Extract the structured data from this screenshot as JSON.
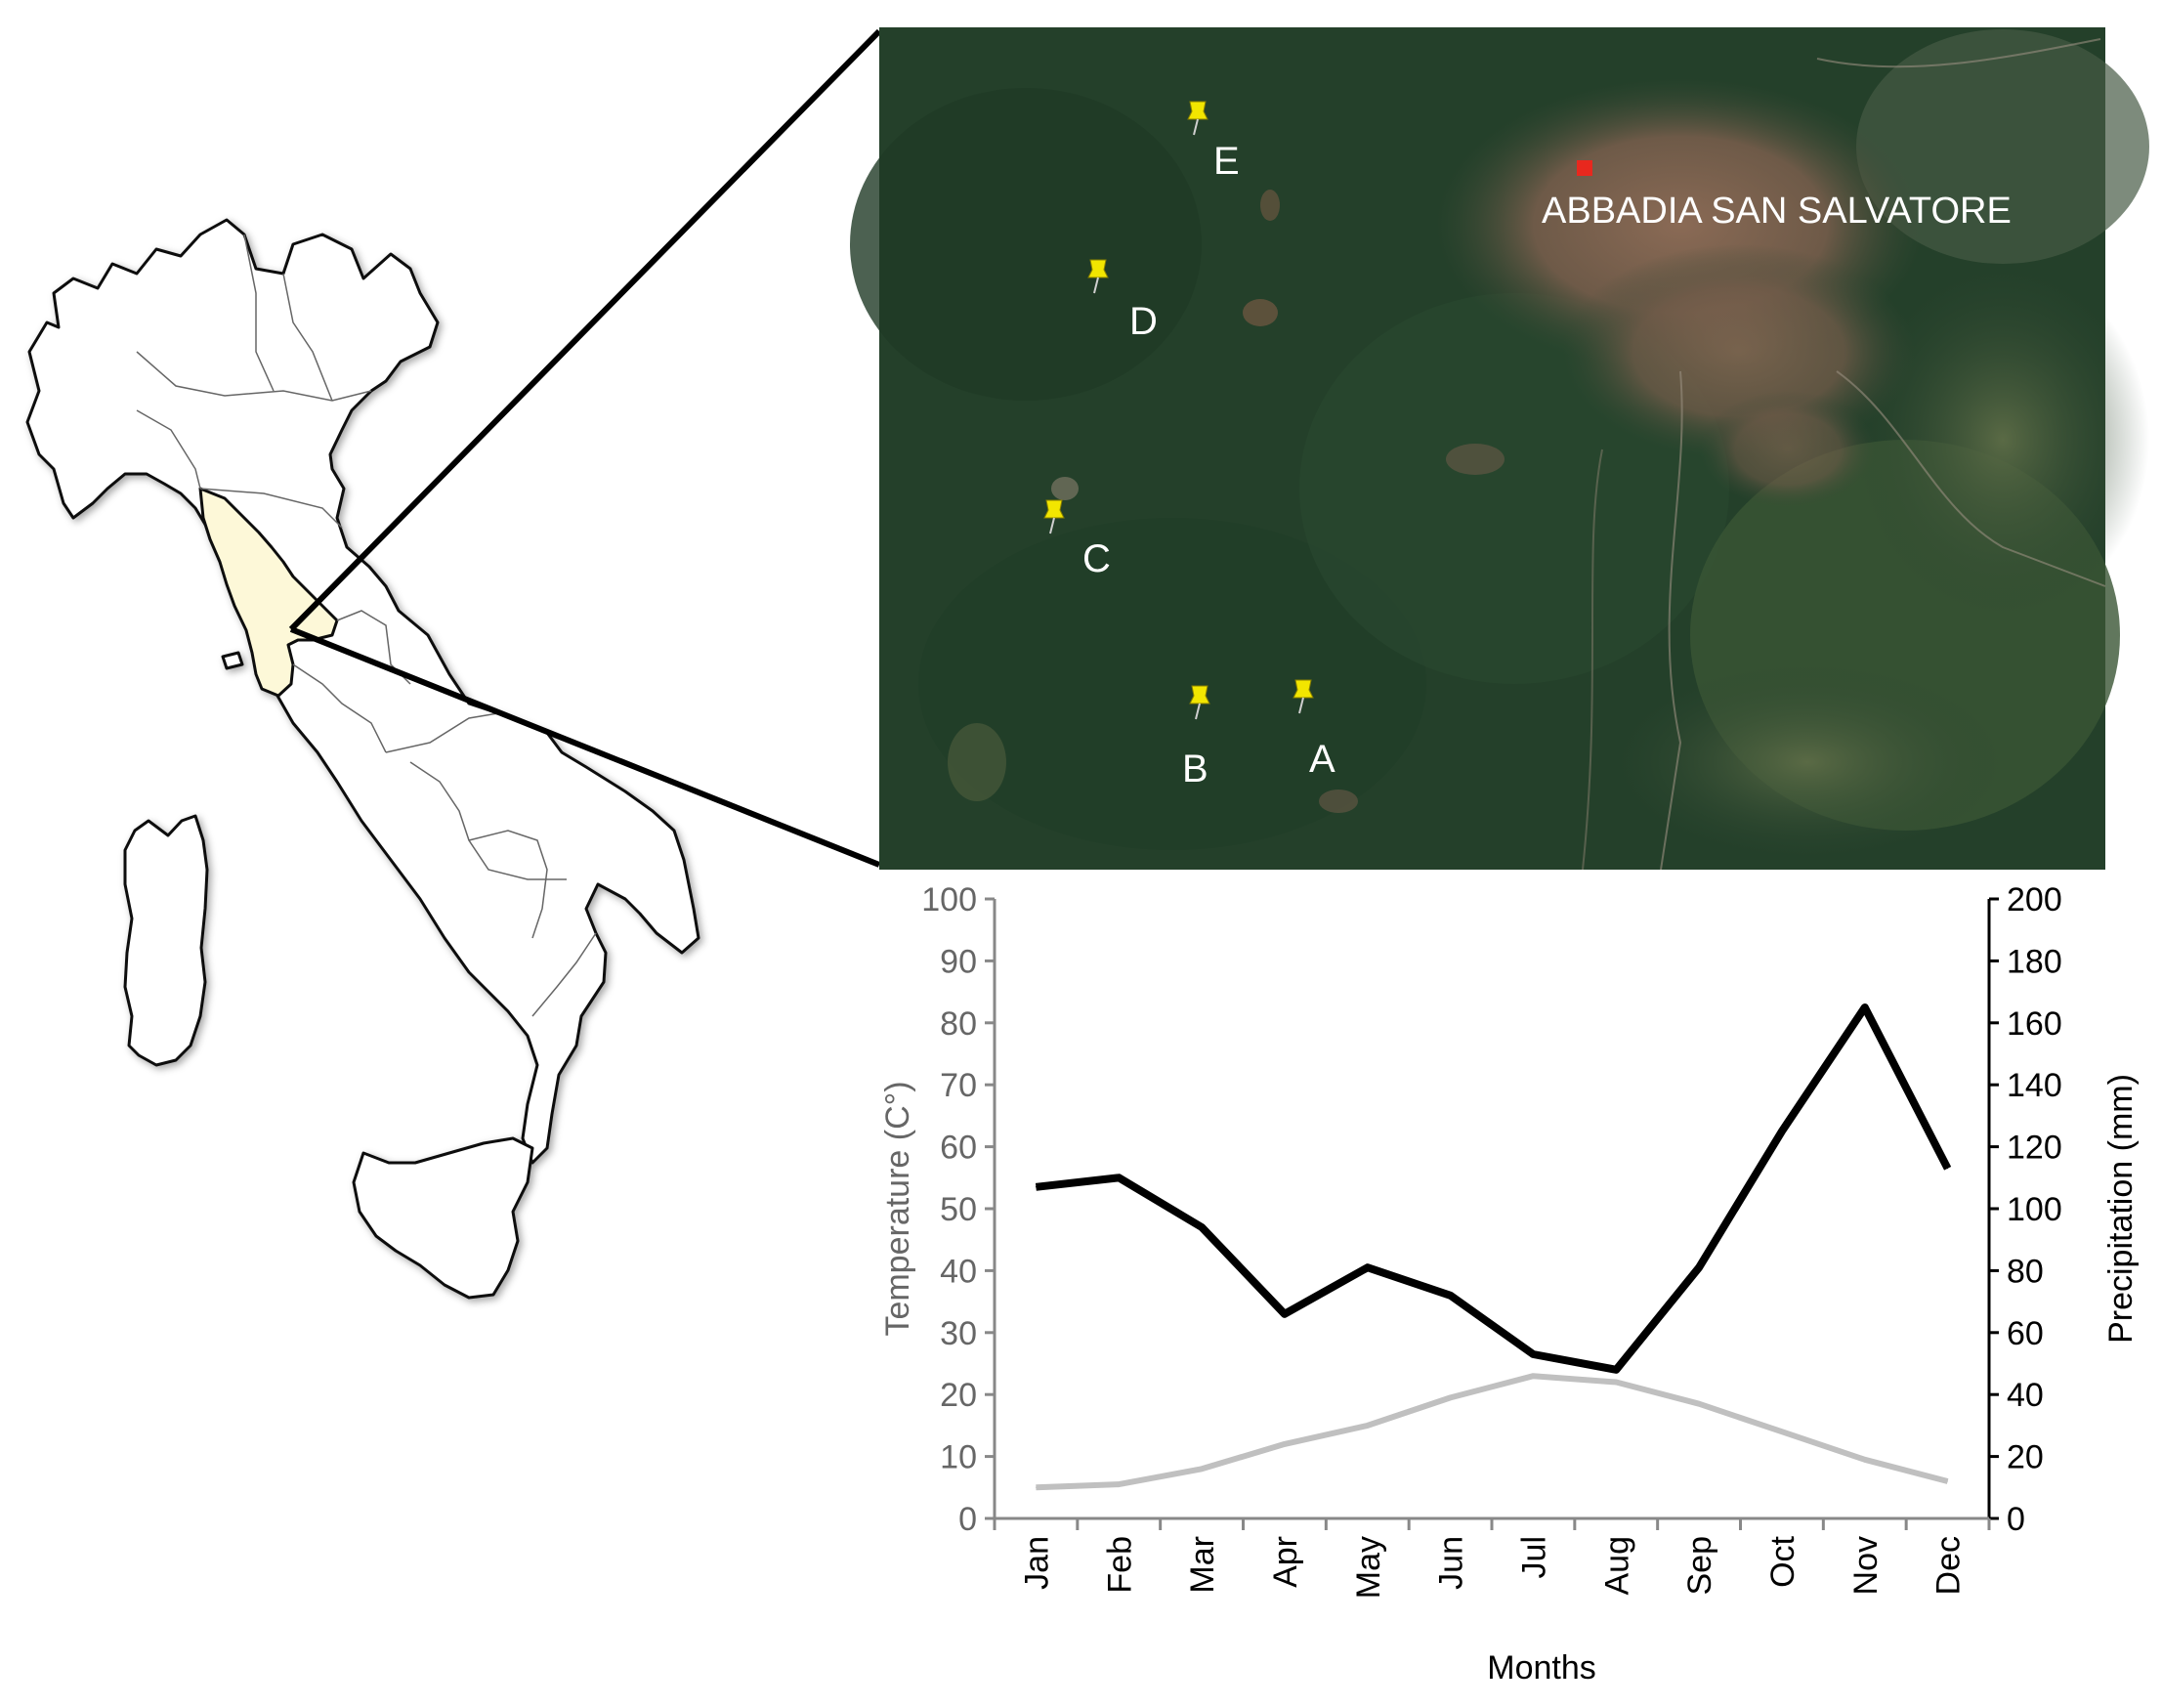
{
  "map": {
    "town_label": "ABBADIA SAN SALVATORE",
    "sites": [
      {
        "label": "E"
      },
      {
        "label": "D"
      },
      {
        "label": "C"
      },
      {
        "label": "B"
      },
      {
        "label": "A"
      }
    ],
    "colors": {
      "tuscany_fill": "#fdf8d8",
      "forest": "#24402a",
      "town_marker": "#e8281e",
      "pin": "#f2e600"
    }
  },
  "chart_data": {
    "type": "line",
    "categories": [
      "Jan",
      "Feb",
      "Mar",
      "Apr",
      "May",
      "Jun",
      "Jul",
      "Aug",
      "Sep",
      "Oct",
      "Nov",
      "Dec"
    ],
    "xlabel": "Months",
    "ylabel_left": "Temperature (C°)",
    "ylabel_right": "Precipitation (mm)",
    "ylim_left": [
      0,
      100
    ],
    "ylim_right": [
      0,
      200
    ],
    "yticks_left": [
      "0",
      "10",
      "20",
      "30",
      "40",
      "50",
      "60",
      "70",
      "80",
      "90",
      "100"
    ],
    "yticks_right": [
      "0",
      "20",
      "40",
      "60",
      "80",
      "100",
      "120",
      "140",
      "160",
      "180",
      "200"
    ],
    "series": [
      {
        "axis": "right",
        "color": "#000000",
        "values": [
          107,
          110,
          94,
          66,
          81,
          72,
          53,
          48,
          81,
          125,
          165,
          113
        ]
      },
      {
        "axis": "left",
        "color": "#c0c0c0",
        "values": [
          5,
          5.5,
          8,
          12,
          15,
          19.5,
          23,
          22,
          18.5,
          14,
          9.5,
          6
        ]
      }
    ],
    "grid": false
  }
}
